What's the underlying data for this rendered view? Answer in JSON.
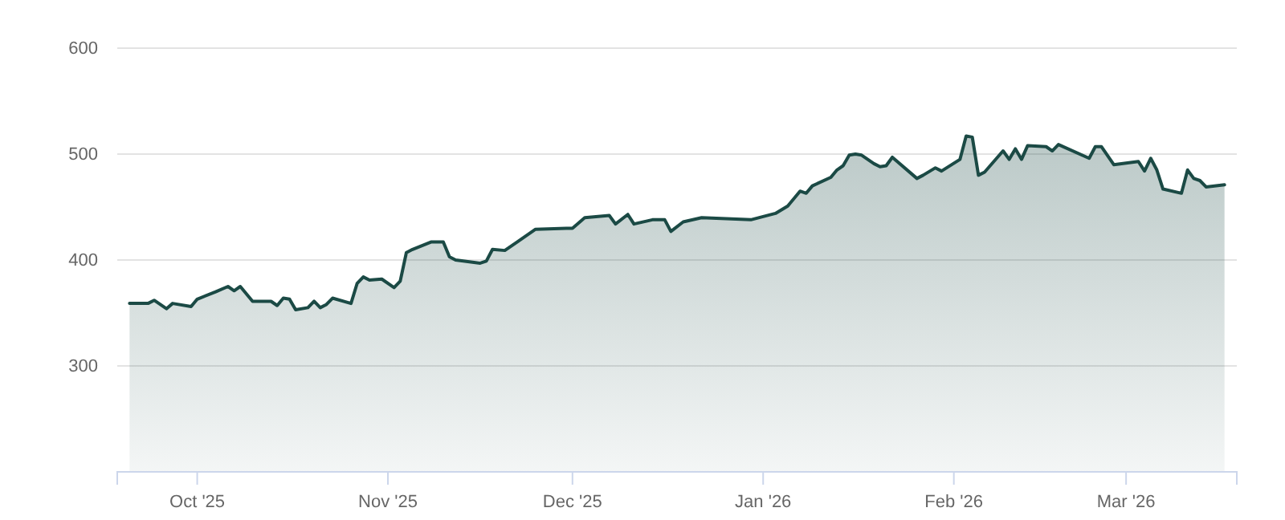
{
  "chart_data": {
    "type": "area",
    "x": [
      "2025-09-20",
      "2025-09-23",
      "2025-09-24",
      "2025-09-26",
      "2025-09-27",
      "2025-09-30",
      "2025-10-01",
      "2025-10-04",
      "2025-10-06",
      "2025-10-07",
      "2025-10-08",
      "2025-10-10",
      "2025-10-13",
      "2025-10-14",
      "2025-10-15",
      "2025-10-16",
      "2025-10-17",
      "2025-10-19",
      "2025-10-20",
      "2025-10-21",
      "2025-10-22",
      "2025-10-23",
      "2025-10-26",
      "2025-10-27",
      "2025-10-28",
      "2025-10-29",
      "2025-10-31",
      "2025-11-02",
      "2025-11-03",
      "2025-11-04",
      "2025-11-05",
      "2025-11-08",
      "2025-11-10",
      "2025-11-11",
      "2025-11-12",
      "2025-11-16",
      "2025-11-17",
      "2025-11-18",
      "2025-11-20",
      "2025-11-22",
      "2025-11-25",
      "2025-11-30",
      "2025-12-01",
      "2025-12-03",
      "2025-12-07",
      "2025-12-08",
      "2025-12-10",
      "2025-12-11",
      "2025-12-14",
      "2025-12-16",
      "2025-12-17",
      "2025-12-19",
      "2025-12-22",
      "2025-12-30",
      "2026-01-03",
      "2026-01-05",
      "2026-01-07",
      "2026-01-08",
      "2026-01-09",
      "2026-01-12",
      "2026-01-13",
      "2026-01-14",
      "2026-01-15",
      "2026-01-16",
      "2026-01-17",
      "2026-01-19",
      "2026-01-20",
      "2026-01-21",
      "2026-01-22",
      "2026-01-26",
      "2026-01-27",
      "2026-01-29",
      "2026-01-30",
      "2026-02-02",
      "2026-02-03",
      "2026-02-04",
      "2026-02-05",
      "2026-02-06",
      "2026-02-09",
      "2026-02-10",
      "2026-02-11",
      "2026-02-12",
      "2026-02-13",
      "2026-02-16",
      "2026-02-17",
      "2026-02-18",
      "2026-02-23",
      "2026-02-24",
      "2026-02-25",
      "2026-02-27",
      "2026-03-03",
      "2026-03-04",
      "2026-03-05",
      "2026-03-06",
      "2026-03-07",
      "2026-03-10",
      "2026-03-11",
      "2026-03-12",
      "2026-03-13",
      "2026-03-14",
      "2026-03-17"
    ],
    "series": [
      {
        "color": "#1b4a45",
        "values": [
          359,
          359,
          362,
          354,
          359,
          356,
          363,
          370,
          375,
          371,
          375,
          361,
          361,
          357,
          364,
          363,
          353,
          355,
          361,
          355,
          358,
          364,
          359,
          378,
          384,
          381,
          382,
          374,
          380,
          407,
          410,
          417,
          417,
          403,
          400,
          397,
          399,
          410,
          409,
          417,
          429,
          430,
          430,
          440,
          442,
          434,
          443,
          434,
          438,
          438,
          427,
          436,
          440,
          438,
          444,
          451,
          465,
          463,
          470,
          478,
          485,
          489,
          499,
          500,
          499,
          491,
          488,
          489,
          497,
          477,
          480,
          487,
          484,
          495,
          517,
          516,
          480,
          483,
          503,
          495,
          505,
          495,
          508,
          507,
          503,
          509,
          496,
          507,
          507,
          490,
          493,
          484,
          496,
          485,
          467,
          463,
          485,
          477,
          475,
          469,
          471
        ]
      }
    ],
    "xlim": [
      "2025-09-18",
      "2026-03-19"
    ],
    "xticks": [
      {
        "value": "2025-10-01",
        "label": "Oct '25"
      },
      {
        "value": "2025-11-01",
        "label": "Nov '25"
      },
      {
        "value": "2025-12-01",
        "label": "Dec '25"
      },
      {
        "value": "2026-01-01",
        "label": "Jan '26"
      },
      {
        "value": "2026-02-01",
        "label": "Feb '26"
      },
      {
        "value": "2026-03-01",
        "label": "Mar '26"
      }
    ],
    "ylim": [
      200,
      600
    ],
    "yticks": [
      300,
      400,
      500,
      600
    ],
    "grid": "y"
  }
}
